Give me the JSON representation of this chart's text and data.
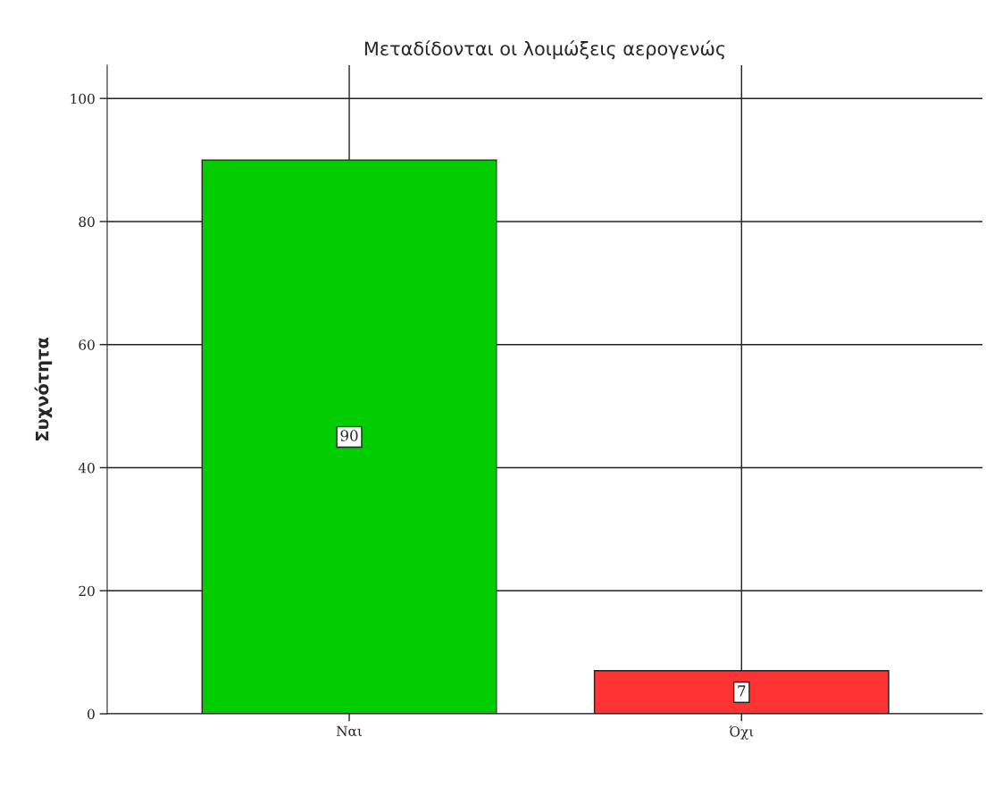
{
  "chart_data": {
    "type": "bar",
    "title": "Μεταδίδονται οι λοιμώξεις αερογενώς",
    "ylabel": "Συχνότητα",
    "categories": [
      "Ναι",
      "Όχι"
    ],
    "values": [
      90,
      7
    ],
    "colors": [
      "#00cc00",
      "#ff3333"
    ],
    "ylim": [
      0,
      105.4
    ],
    "yticks": [
      0,
      20,
      40,
      60,
      80,
      100
    ],
    "grid": true,
    "data_labels": true
  }
}
